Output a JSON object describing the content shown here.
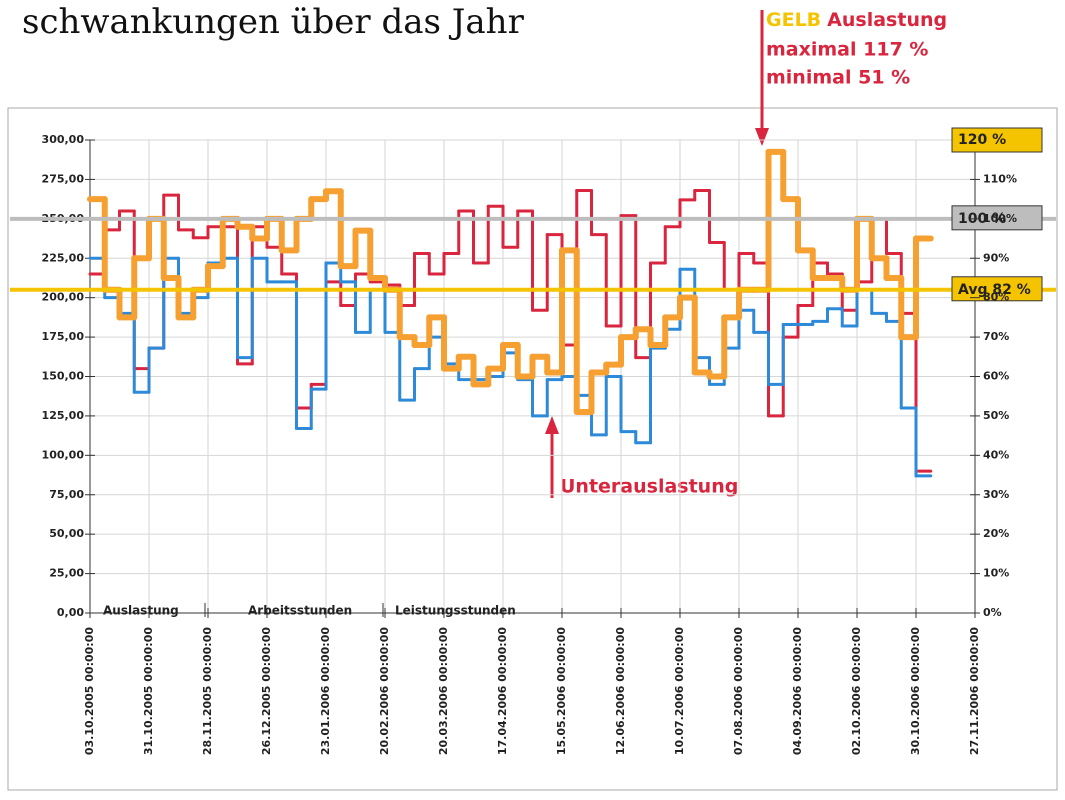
{
  "chart_data": {
    "type": "step",
    "title": "schwankungen über das Jahr",
    "annotations": {
      "gelb": "GELB",
      "gelb_text": "Auslastung",
      "max": "maximal 117 %",
      "min": "minimal 51 %",
      "under": "Unterauslastung"
    },
    "x": [
      0,
      1,
      2,
      3,
      4,
      5,
      6,
      7,
      8,
      9,
      10,
      11,
      12,
      13,
      14,
      15,
      16,
      17,
      18,
      19,
      20,
      21,
      22,
      23,
      24,
      25,
      26,
      27,
      28,
      29,
      30,
      31,
      32,
      33,
      34,
      35,
      36,
      37,
      38,
      39,
      40,
      41,
      42,
      43,
      44,
      45,
      46,
      47,
      48,
      49,
      50,
      51,
      52,
      53,
      54,
      55,
      56
    ],
    "xlim": [
      0,
      60
    ],
    "xticks": [
      {
        "value": 0,
        "label": "03.10.2005 00:00:00"
      },
      {
        "value": 4,
        "label": "31.10.2005 00:00:00"
      },
      {
        "value": 8,
        "label": "28.11.2005 00:00:00"
      },
      {
        "value": 12,
        "label": "26.12.2005 00:00:00"
      },
      {
        "value": 16,
        "label": "23.01.2006 00:00:00"
      },
      {
        "value": 20,
        "label": "20.02.2006 00:00:00"
      },
      {
        "value": 24,
        "label": "20.03.2006 00:00:00"
      },
      {
        "value": 28,
        "label": "17.04.2006 00:00:00"
      },
      {
        "value": 32,
        "label": "15.05.2006 00:00:00"
      },
      {
        "value": 36,
        "label": "12.06.2006 00:00:00"
      },
      {
        "value": 40,
        "label": "10.07.2006 00:00:00"
      },
      {
        "value": 44,
        "label": "07.08.2006 00:00:00"
      },
      {
        "value": 48,
        "label": "04.09.2006 00:00:00"
      },
      {
        "value": 52,
        "label": "02.10.2006 00:00:00"
      },
      {
        "value": 56,
        "label": "30.10.2006 00:00:00"
      },
      {
        "value": 60,
        "label": "27.11.2006 00:00:00"
      }
    ],
    "ylim": [
      0,
      300
    ],
    "yticks": [
      {
        "value": 0,
        "label": "0,00"
      },
      {
        "value": 25,
        "label": "25,00"
      },
      {
        "value": 50,
        "label": "50,00"
      },
      {
        "value": 75,
        "label": "75,00"
      },
      {
        "value": 100,
        "label": "100,00"
      },
      {
        "value": 125,
        "label": "125,00"
      },
      {
        "value": 150,
        "label": "150,00"
      },
      {
        "value": 175,
        "label": "175,00"
      },
      {
        "value": 200,
        "label": "200,00"
      },
      {
        "value": 225,
        "label": "225,00"
      },
      {
        "value": 250,
        "label": "250,00"
      },
      {
        "value": 275,
        "label": "275,00"
      },
      {
        "value": 300,
        "label": "300,00"
      }
    ],
    "y2lim": [
      0,
      120
    ],
    "y2ticks": [
      {
        "value": 0,
        "label": "0%"
      },
      {
        "value": 10,
        "label": "10%"
      },
      {
        "value": 20,
        "label": "20%"
      },
      {
        "value": 30,
        "label": "30%"
      },
      {
        "value": 40,
        "label": "40%"
      },
      {
        "value": 50,
        "label": "50%"
      },
      {
        "value": 60,
        "label": "60%"
      },
      {
        "value": 70,
        "label": "70%"
      },
      {
        "value": 80,
        "label": "80%"
      },
      {
        "value": 90,
        "label": "90%"
      },
      {
        "value": 100,
        "label": "100%"
      },
      {
        "value": 110,
        "label": "110%"
      },
      {
        "value": 120,
        "label": "120 %"
      }
    ],
    "reference_lines": [
      {
        "value": 100,
        "label": "100 %",
        "color": "#bdbdbd"
      },
      {
        "value": 82,
        "label": "Avg 82 %",
        "color": "#f5c400"
      }
    ],
    "grid": true,
    "series": [
      {
        "name": "Arbeitsstunden",
        "color": "#d9263e",
        "values": [
          215,
          243,
          255,
          155,
          168,
          265,
          243,
          238,
          245,
          245,
          158,
          245,
          232,
          215,
          130,
          145,
          210,
          195,
          215,
          210,
          208,
          195,
          228,
          215,
          228,
          255,
          222,
          258,
          232,
          255,
          192,
          240,
          170,
          268,
          240,
          182,
          252,
          162,
          222,
          245,
          262,
          268,
          235,
          205,
          228,
          222,
          125,
          175,
          195,
          222,
          215,
          192,
          210,
          250,
          228,
          190,
          90
        ]
      },
      {
        "name": "Leistungsstunden",
        "color": "#2d8ad8",
        "values": [
          225,
          200,
          190,
          140,
          168,
          225,
          190,
          200,
          222,
          225,
          162,
          225,
          210,
          210,
          117,
          142,
          222,
          210,
          178,
          205,
          178,
          135,
          155,
          175,
          158,
          148,
          148,
          150,
          165,
          148,
          125,
          148,
          150,
          138,
          113,
          150,
          115,
          108,
          168,
          180,
          218,
          162,
          145,
          168,
          192,
          178,
          145,
          183,
          183,
          185,
          193,
          182,
          205,
          190,
          185,
          130,
          87
        ]
      },
      {
        "name": "Auslastung",
        "color": "#f5a030",
        "axis": "y2",
        "values": [
          105,
          82,
          75,
          90,
          100,
          85,
          75,
          82,
          88,
          100,
          98,
          95,
          100,
          92,
          100,
          105,
          107,
          88,
          97,
          85,
          82,
          70,
          68,
          75,
          62,
          65,
          58,
          62,
          68,
          60,
          65,
          61,
          92,
          51,
          61,
          63,
          70,
          72,
          68,
          75,
          80,
          61,
          60,
          75,
          82,
          82,
          117,
          105,
          92,
          85,
          85,
          82,
          100,
          90,
          85,
          70,
          95
        ]
      }
    ]
  }
}
